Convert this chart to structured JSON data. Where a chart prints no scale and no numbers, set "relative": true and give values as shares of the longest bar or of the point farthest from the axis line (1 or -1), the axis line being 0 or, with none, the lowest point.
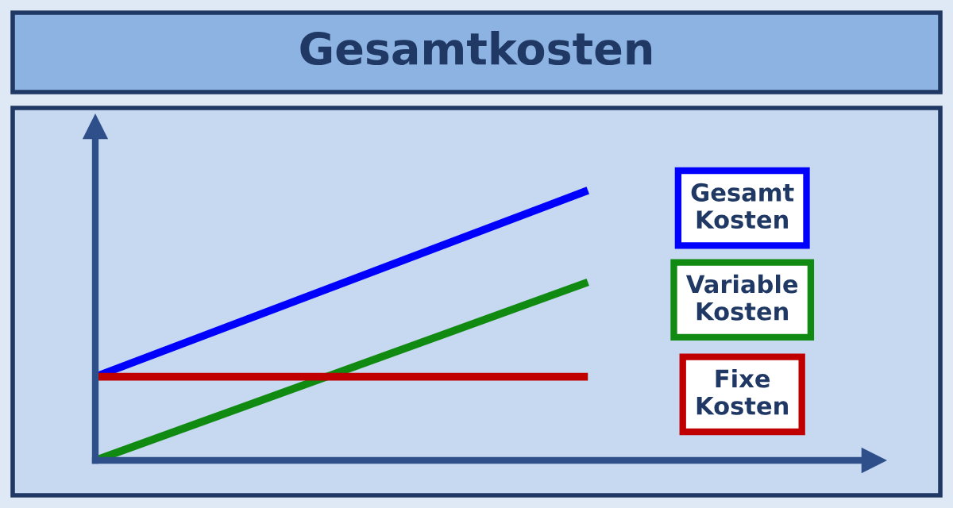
{
  "chart_data": {
    "type": "line",
    "title": "Gesamtkosten",
    "relative": true,
    "categories": [
      null,
      null
    ],
    "series": [
      {
        "name": "Gesamt\nKosten",
        "color": "#0000ff",
        "values": [
          0.31,
          1
        ]
      },
      {
        "name": "Variable\nKosten",
        "color": "#108a10",
        "values": [
          0,
          0.66
        ]
      },
      {
        "name": "Fixe\nKosten",
        "color": "#c00000",
        "values": [
          0.31,
          0.31
        ]
      }
    ],
    "marker": "none",
    "line_style": "solid"
  }
}
